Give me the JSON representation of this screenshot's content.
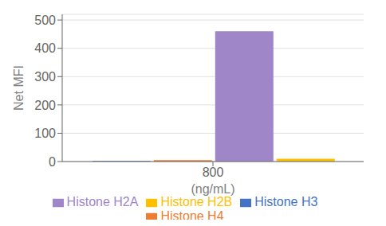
{
  "chart_data": {
    "type": "bar",
    "categories": [
      "800"
    ],
    "xlabel": "(ng/mL)",
    "ylabel": "Net MFI",
    "ylim": [
      0,
      520
    ],
    "yticks": [
      0,
      100,
      200,
      300,
      400,
      500
    ],
    "grid": true,
    "legend": "bottom",
    "series": [
      {
        "name": "Histone H3",
        "color": "#4472C4",
        "values": [
          2
        ]
      },
      {
        "name": "Histone H4",
        "color": "#ED7D31",
        "values": [
          5
        ]
      },
      {
        "name": "Histone H2A",
        "color": "#9E86C8",
        "values": [
          460
        ]
      },
      {
        "name": "Histone H2B",
        "color": "#FFC000",
        "values": [
          10
        ]
      }
    ]
  }
}
